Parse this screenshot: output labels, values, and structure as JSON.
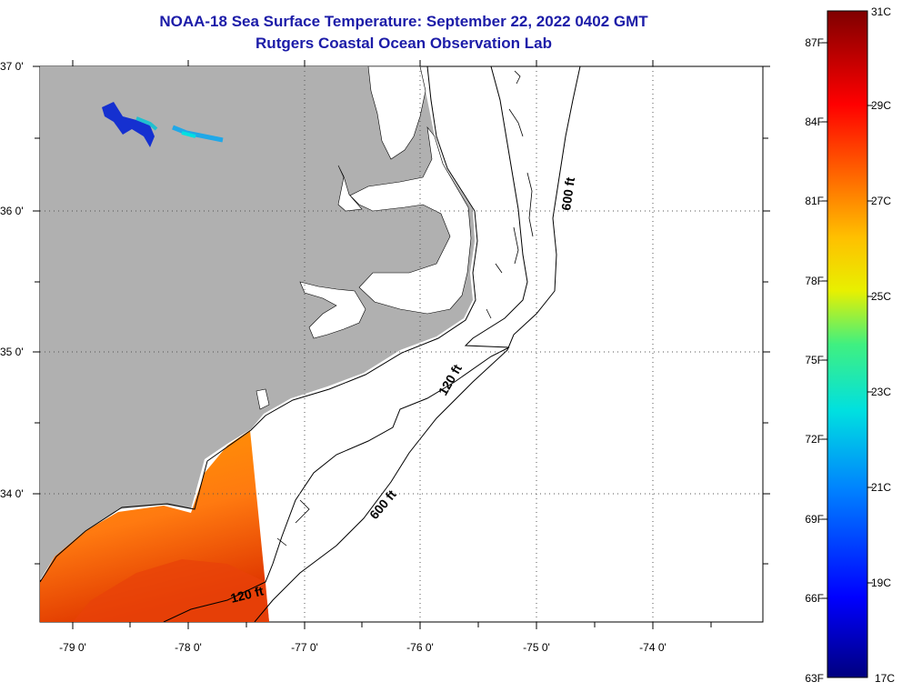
{
  "title_line1": "NOAA-18 Sea Surface Temperature:  September 22, 2022 0402 GMT",
  "title_line2": "Rutgers Coastal Ocean Observation Lab",
  "lat_labels": [
    "37 0'",
    "36 0'",
    "35 0'",
    "34 0'"
  ],
  "lon_labels": [
    "-79 0'",
    "-78 0'",
    "-77 0'",
    "-76 0'",
    "-75 0'",
    "-74 0'"
  ],
  "contours": {
    "shelf_120": "120 ft",
    "slope_600": "600 ft"
  },
  "colorbar": {
    "fahrenheit": [
      "87F",
      "84F",
      "81F",
      "78F",
      "75F",
      "72F",
      "69F",
      "66F",
      "63F"
    ],
    "celsius": [
      "31C",
      "29C",
      "27C",
      "25C",
      "23C",
      "21C",
      "19C",
      "17C"
    ]
  },
  "colors": {
    "land": "#b0b0b0",
    "title": "#1c1ca8",
    "sst_warm": "#ff7a00",
    "sst_hot": "#e83a00"
  }
}
